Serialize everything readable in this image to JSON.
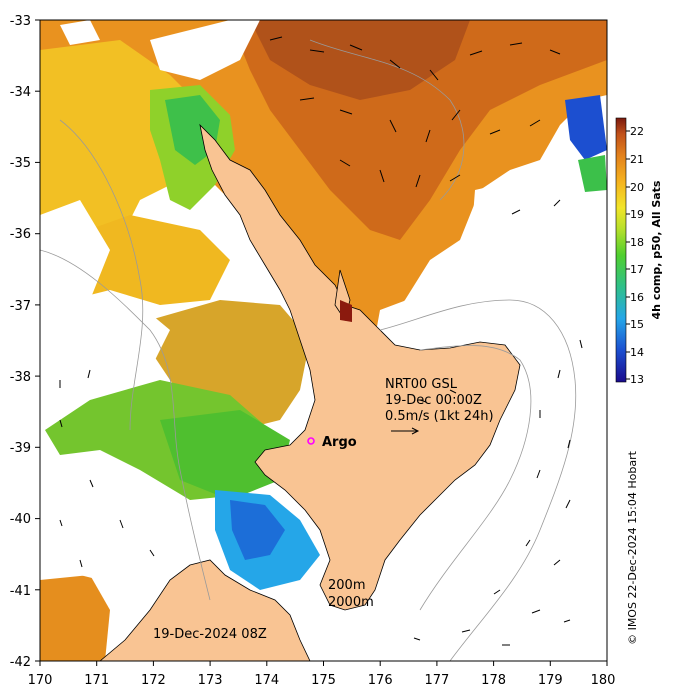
{
  "map": {
    "lon_ticks": [
      "170",
      "171",
      "172",
      "173",
      "174",
      "175",
      "176",
      "177",
      "178",
      "179",
      "180"
    ],
    "lat_ticks": [
      "-33",
      "-34",
      "-35",
      "-36",
      "-37",
      "-38",
      "-39",
      "-40",
      "-41",
      "-42"
    ],
    "lon_range": [
      170,
      180
    ],
    "lat_range": [
      -42,
      -33
    ]
  },
  "colorbar": {
    "title": "4h comp, p50, All Sats",
    "ticks": [
      "22",
      "21",
      "20",
      "19",
      "18",
      "17",
      "16",
      "15",
      "14",
      "13"
    ],
    "range": [
      13,
      22.4
    ]
  },
  "annotations": {
    "product_line1": "NRT00 GSL",
    "product_line2": "19-Dec 00:00Z",
    "scale_label": "0.5m/s (1kt 24h)",
    "argo_label": "Argo",
    "isobath_200": "200m",
    "isobath_2000": "2000m",
    "composite_date": "19-Dec-2024 08Z",
    "credit": "© IMOS 22-Dec-2024 15:04 Hobart"
  },
  "colors": {
    "land": "#f9c493",
    "argo_marker": "#ff00ff",
    "hot_sst": "#c8651f",
    "cool_sst": "#1c7ad6"
  }
}
